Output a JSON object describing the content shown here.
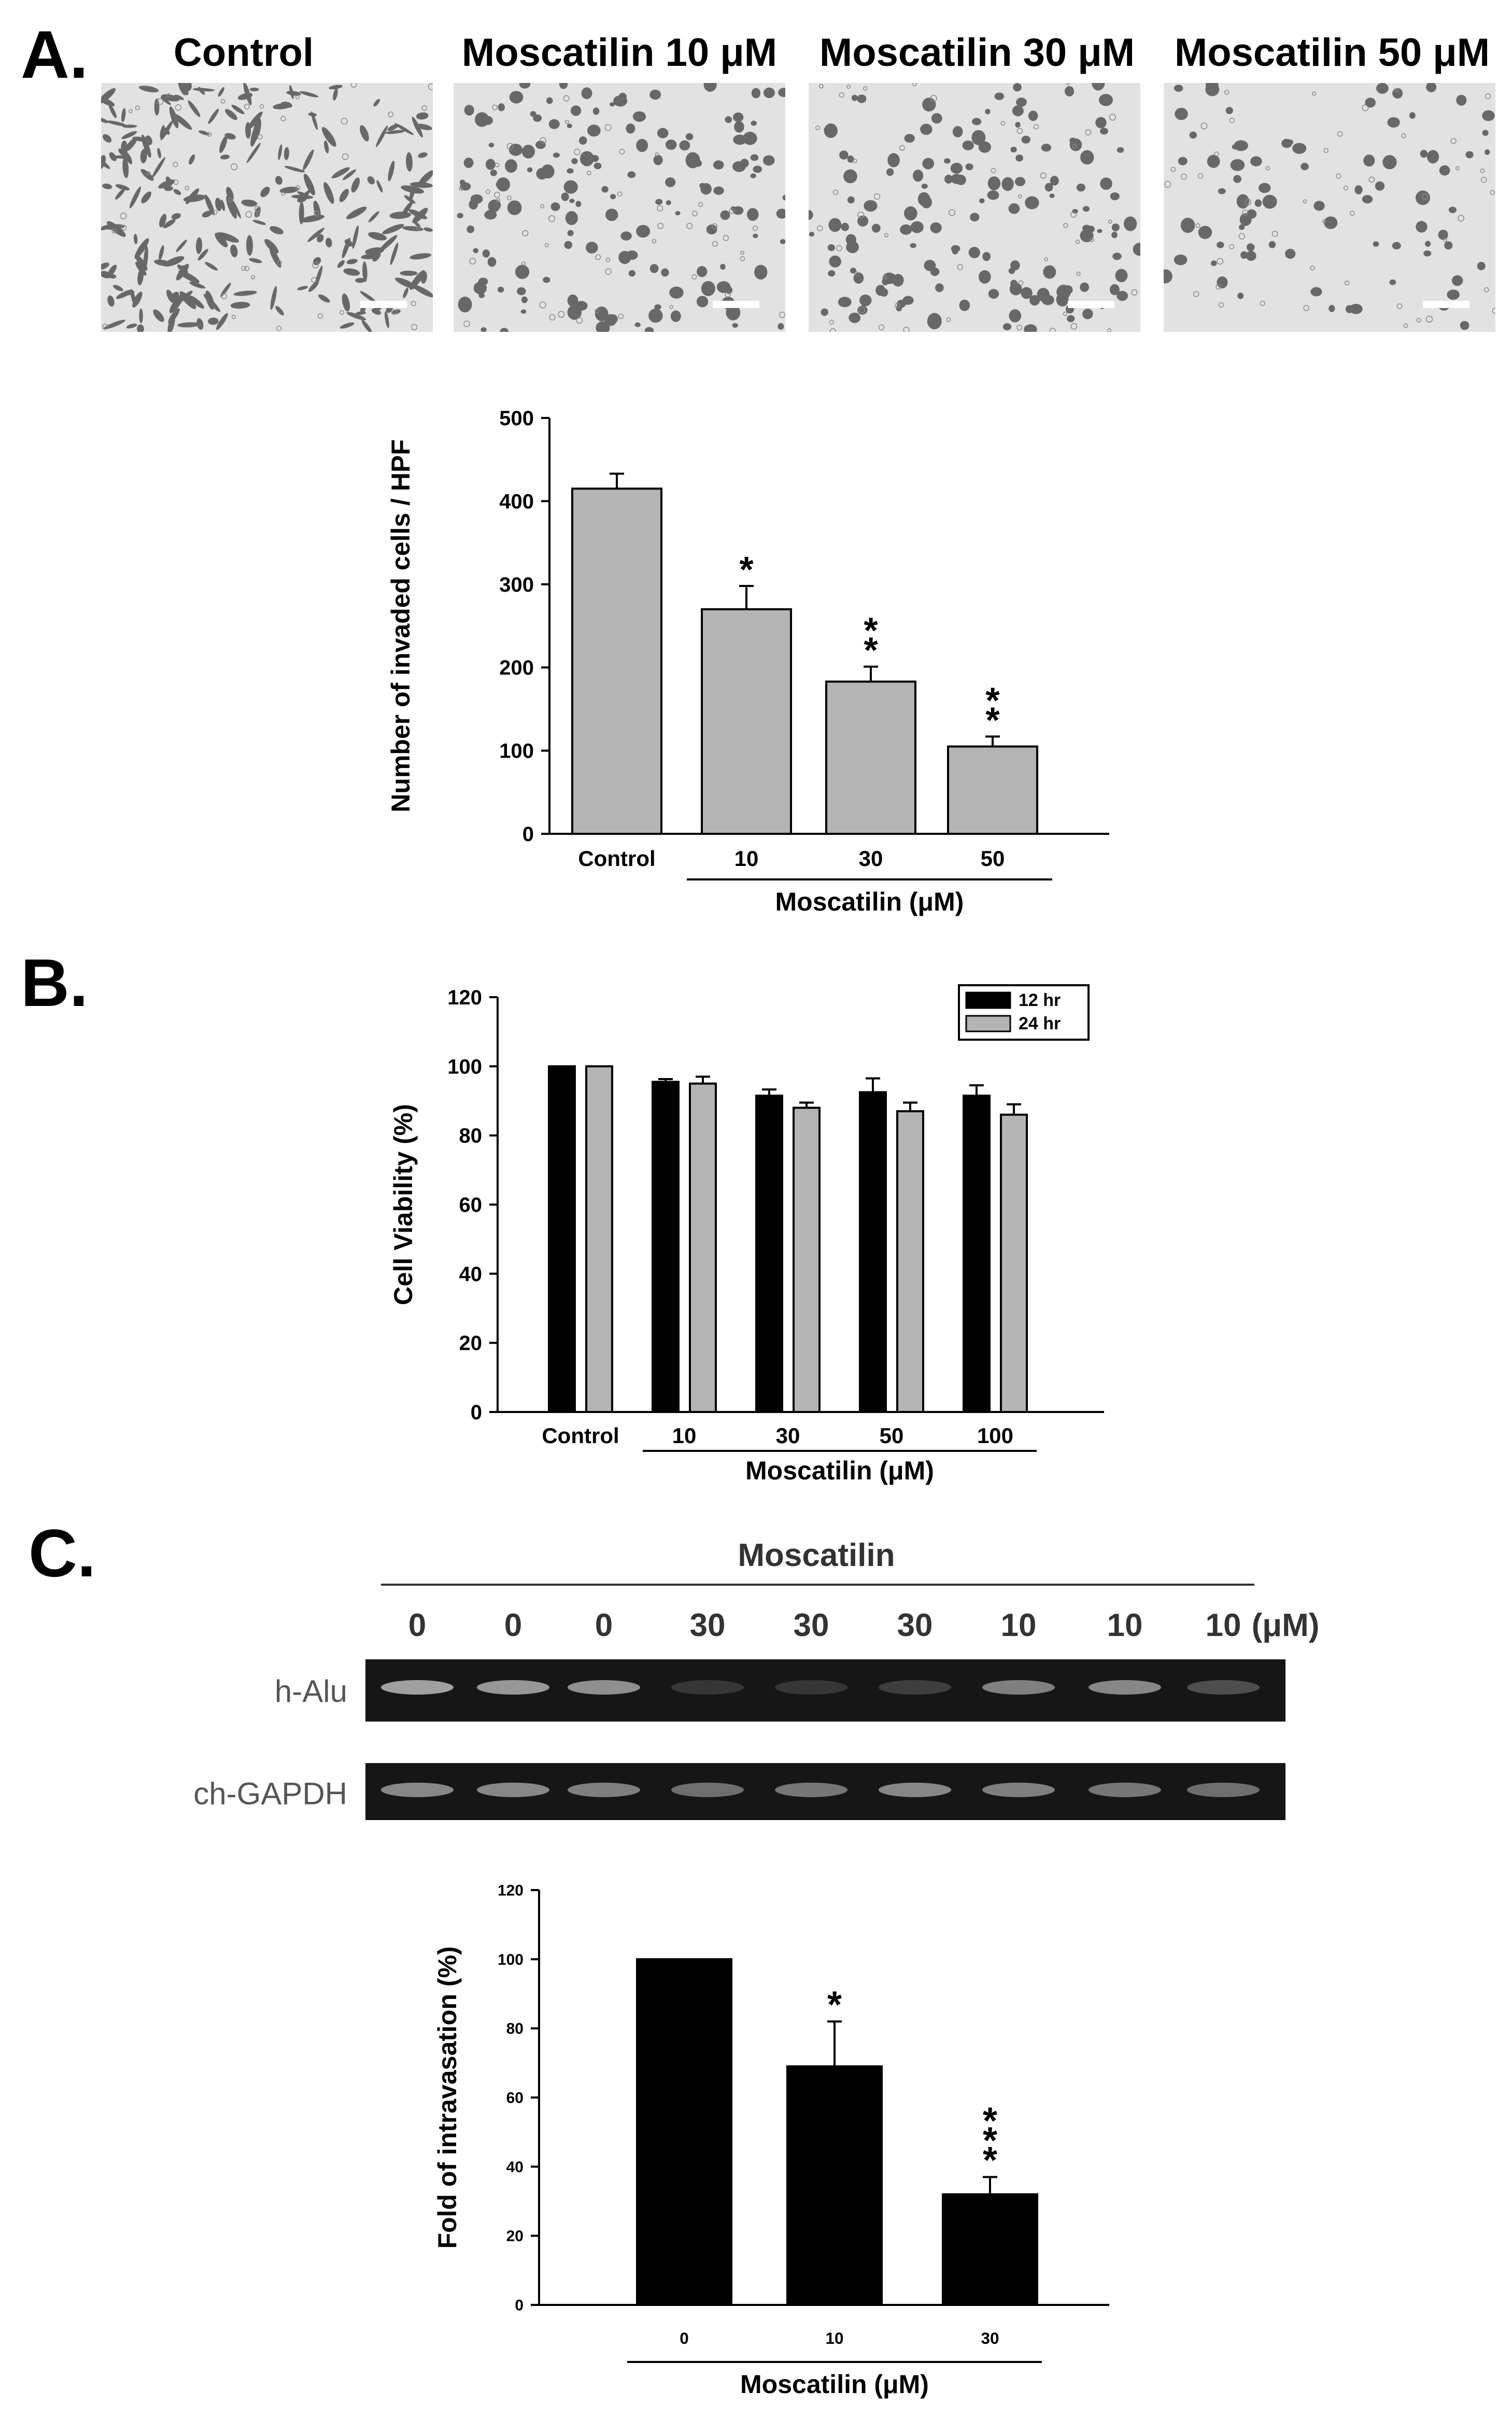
{
  "colors": {
    "bar_gray": "#b4b4b4",
    "bar_black": "#000000",
    "gel_dark": "#161616",
    "band_light": "#b8b8b8",
    "micrograph_bg": "#e2e2e2",
    "cell_stain": "#4a4a4a"
  },
  "panels": [
    {
      "letter": "A."
    },
    {
      "letter": "B."
    },
    {
      "letter": "C."
    }
  ],
  "micrographs": [
    {
      "label": "Control",
      "density": 0.95,
      "elongated": true
    },
    {
      "label": "Moscatilin 10 μM",
      "density": 0.6,
      "elongated": false
    },
    {
      "label": "Moscatilin 30 μM",
      "density": 0.55,
      "elongated": false
    },
    {
      "label": "Moscatilin 50 μM",
      "density": 0.3,
      "elongated": false
    }
  ],
  "chart_data": [
    {
      "type": "bar",
      "panel": "A",
      "categories": [
        "Control",
        "10",
        "30",
        "50"
      ],
      "values": [
        415,
        270,
        183,
        105
      ],
      "errors": [
        18,
        28,
        18,
        12
      ],
      "significance": [
        "",
        "*",
        "**",
        "**"
      ],
      "xlabel": "Moscatilin (μM)",
      "ylabel": "Number of invaded cells / HPF",
      "ylim": [
        0,
        500
      ],
      "yticks": [
        0,
        100,
        200,
        300,
        400,
        500
      ],
      "color": "#b4b4b4",
      "grid": false
    },
    {
      "type": "bar",
      "panel": "B",
      "categories": [
        "Control",
        "10",
        "30",
        "50",
        "100"
      ],
      "series": [
        {
          "name": "12 hr",
          "color": "#000000",
          "values": [
            100,
            95.5,
            91.5,
            92.5,
            91.5
          ],
          "errors": [
            0,
            0.8,
            1.8,
            4,
            3
          ]
        },
        {
          "name": "24 hr",
          "color": "#b4b4b4",
          "values": [
            100,
            95,
            88,
            87,
            86
          ],
          "errors": [
            0,
            2,
            1.5,
            2.5,
            3
          ]
        }
      ],
      "xlabel": "Moscatilin (μM)",
      "ylabel": "Cell Viability (%)",
      "ylim": [
        0,
        120
      ],
      "yticks": [
        0,
        20,
        40,
        60,
        80,
        100,
        120
      ],
      "legend": "top-right",
      "grid": false
    },
    {
      "type": "bar",
      "panel": "C",
      "categories": [
        "0",
        "10",
        "30"
      ],
      "values": [
        100,
        69,
        32
      ],
      "errors": [
        0,
        13,
        5
      ],
      "significance": [
        "",
        "*",
        "***"
      ],
      "xlabel": "Moscatilin (μM)",
      "ylabel": "Fold of intravasation (%)",
      "ylim": [
        0,
        120
      ],
      "yticks": [
        0,
        20,
        40,
        60,
        80,
        100,
        120
      ],
      "color": "#000000",
      "grid": false
    }
  ],
  "gel": {
    "title": "Moscatilin",
    "lanes": [
      "0",
      "0",
      "0",
      "30",
      "30",
      "30",
      "10",
      "10",
      "10"
    ],
    "unit": "(μM)",
    "rows": [
      {
        "label": "h-Alu",
        "intensities": [
          0.85,
          0.8,
          0.75,
          0.2,
          0.2,
          0.25,
          0.65,
          0.7,
          0.35
        ]
      },
      {
        "label": "ch-GAPDH",
        "intensities": [
          0.7,
          0.7,
          0.65,
          0.55,
          0.6,
          0.7,
          0.65,
          0.6,
          0.55
        ]
      }
    ]
  }
}
